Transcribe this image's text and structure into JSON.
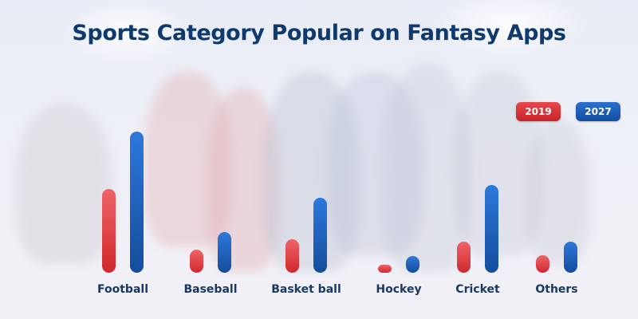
{
  "title": "Sports Category Popular on Fantasy Apps",
  "legend": [
    {
      "label": "2019",
      "color": "#d9353a"
    },
    {
      "label": "2027",
      "color": "#1f5fbf"
    }
  ],
  "colors": {
    "title": "#0f3a6e",
    "label": "#1b3863",
    "series_2019": "#d9353a",
    "series_2027": "#1f5fbf",
    "background": "#eeeef6"
  },
  "chart_data": {
    "type": "bar",
    "title": "Sports Category Popular on Fantasy Apps",
    "xlabel": "",
    "ylabel": "",
    "categories": [
      "Football",
      "Baseball",
      "Basket ball",
      "Hockey",
      "Cricket",
      "Others"
    ],
    "series": [
      {
        "name": "2019",
        "values": [
          105,
          29,
          42,
          10,
          39,
          22
        ]
      },
      {
        "name": "2027",
        "values": [
          177,
          51,
          94,
          21,
          110,
          39
        ]
      }
    ],
    "units_note": "relative bar heights (no value axis shown)",
    "ylim": [
      0,
      180
    ],
    "grid": false,
    "legend_position": "top-right"
  }
}
